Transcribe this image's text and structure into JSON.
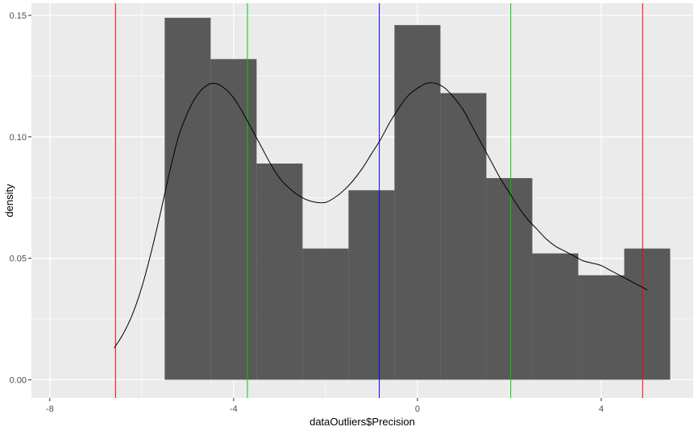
{
  "chart_data": {
    "type": "bar",
    "xlabel": "dataOutliers$Precision",
    "ylabel": "density",
    "xlim": [
      -8.4,
      6.0
    ],
    "ylim": [
      -0.0075,
      0.155
    ],
    "x_ticks": [
      -8,
      -4,
      0,
      4
    ],
    "x_tick_labels": [
      "-8",
      "-4",
      "0",
      "4"
    ],
    "y_ticks": [
      0.0,
      0.05,
      0.1,
      0.15
    ],
    "y_tick_labels": [
      "0.00",
      "0.05",
      "0.10",
      "0.15"
    ],
    "grid": true,
    "bins": [
      {
        "x0": -5.5,
        "x1": -4.5,
        "density": 0.149
      },
      {
        "x0": -4.5,
        "x1": -3.5,
        "density": 0.132
      },
      {
        "x0": -3.5,
        "x1": -2.5,
        "density": 0.089
      },
      {
        "x0": -2.5,
        "x1": -1.5,
        "density": 0.054
      },
      {
        "x0": -1.5,
        "x1": -0.5,
        "density": 0.078
      },
      {
        "x0": -0.5,
        "x1": 0.5,
        "density": 0.146
      },
      {
        "x0": 0.5,
        "x1": 1.5,
        "density": 0.118
      },
      {
        "x0": 1.5,
        "x1": 2.5,
        "density": 0.083
      },
      {
        "x0": 2.5,
        "x1": 3.5,
        "density": 0.052
      },
      {
        "x0": 3.5,
        "x1": 4.5,
        "density": 0.043
      },
      {
        "x0": 4.5,
        "x1": 5.5,
        "density": 0.054
      }
    ],
    "density_curve": {
      "x": [
        -6.6,
        -6.4,
        -6.2,
        -6.0,
        -5.8,
        -5.6,
        -5.4,
        -5.2,
        -5.0,
        -4.8,
        -4.6,
        -4.4,
        -4.2,
        -4.0,
        -3.8,
        -3.6,
        -3.4,
        -3.2,
        -3.0,
        -2.8,
        -2.6,
        -2.4,
        -2.2,
        -2.0,
        -1.8,
        -1.6,
        -1.4,
        -1.2,
        -1.0,
        -0.8,
        -0.6,
        -0.4,
        -0.2,
        0.0,
        0.2,
        0.4,
        0.6,
        0.8,
        1.0,
        1.2,
        1.4,
        1.6,
        1.8,
        2.0,
        2.2,
        2.4,
        2.6,
        2.8,
        3.0,
        3.2,
        3.4,
        3.6,
        3.8,
        4.0,
        4.2,
        4.4,
        4.6,
        4.8,
        5.0
      ],
      "y": [
        0.013,
        0.019,
        0.027,
        0.038,
        0.052,
        0.068,
        0.085,
        0.1,
        0.11,
        0.117,
        0.121,
        0.122,
        0.12,
        0.116,
        0.11,
        0.103,
        0.096,
        0.089,
        0.083,
        0.079,
        0.076,
        0.074,
        0.073,
        0.073,
        0.075,
        0.078,
        0.082,
        0.087,
        0.093,
        0.099,
        0.106,
        0.112,
        0.117,
        0.12,
        0.122,
        0.122,
        0.12,
        0.116,
        0.111,
        0.104,
        0.097,
        0.09,
        0.083,
        0.077,
        0.071,
        0.066,
        0.062,
        0.058,
        0.055,
        0.053,
        0.051,
        0.049,
        0.048,
        0.047,
        0.045,
        0.043,
        0.041,
        0.039,
        0.037
      ],
      "color": "#000000"
    },
    "vlines": [
      {
        "x": -6.57,
        "color": "#ff0000"
      },
      {
        "x": -3.7,
        "color": "#00cc00"
      },
      {
        "x": -0.83,
        "color": "#0000ff"
      },
      {
        "x": 2.03,
        "color": "#00cc00"
      },
      {
        "x": 4.9,
        "color": "#ff0000"
      }
    ],
    "colors": {
      "panel_background": "#ebebeb",
      "grid": "#ffffff",
      "bar_fill": "#595959",
      "tick_text": "#4d4d4d"
    }
  }
}
